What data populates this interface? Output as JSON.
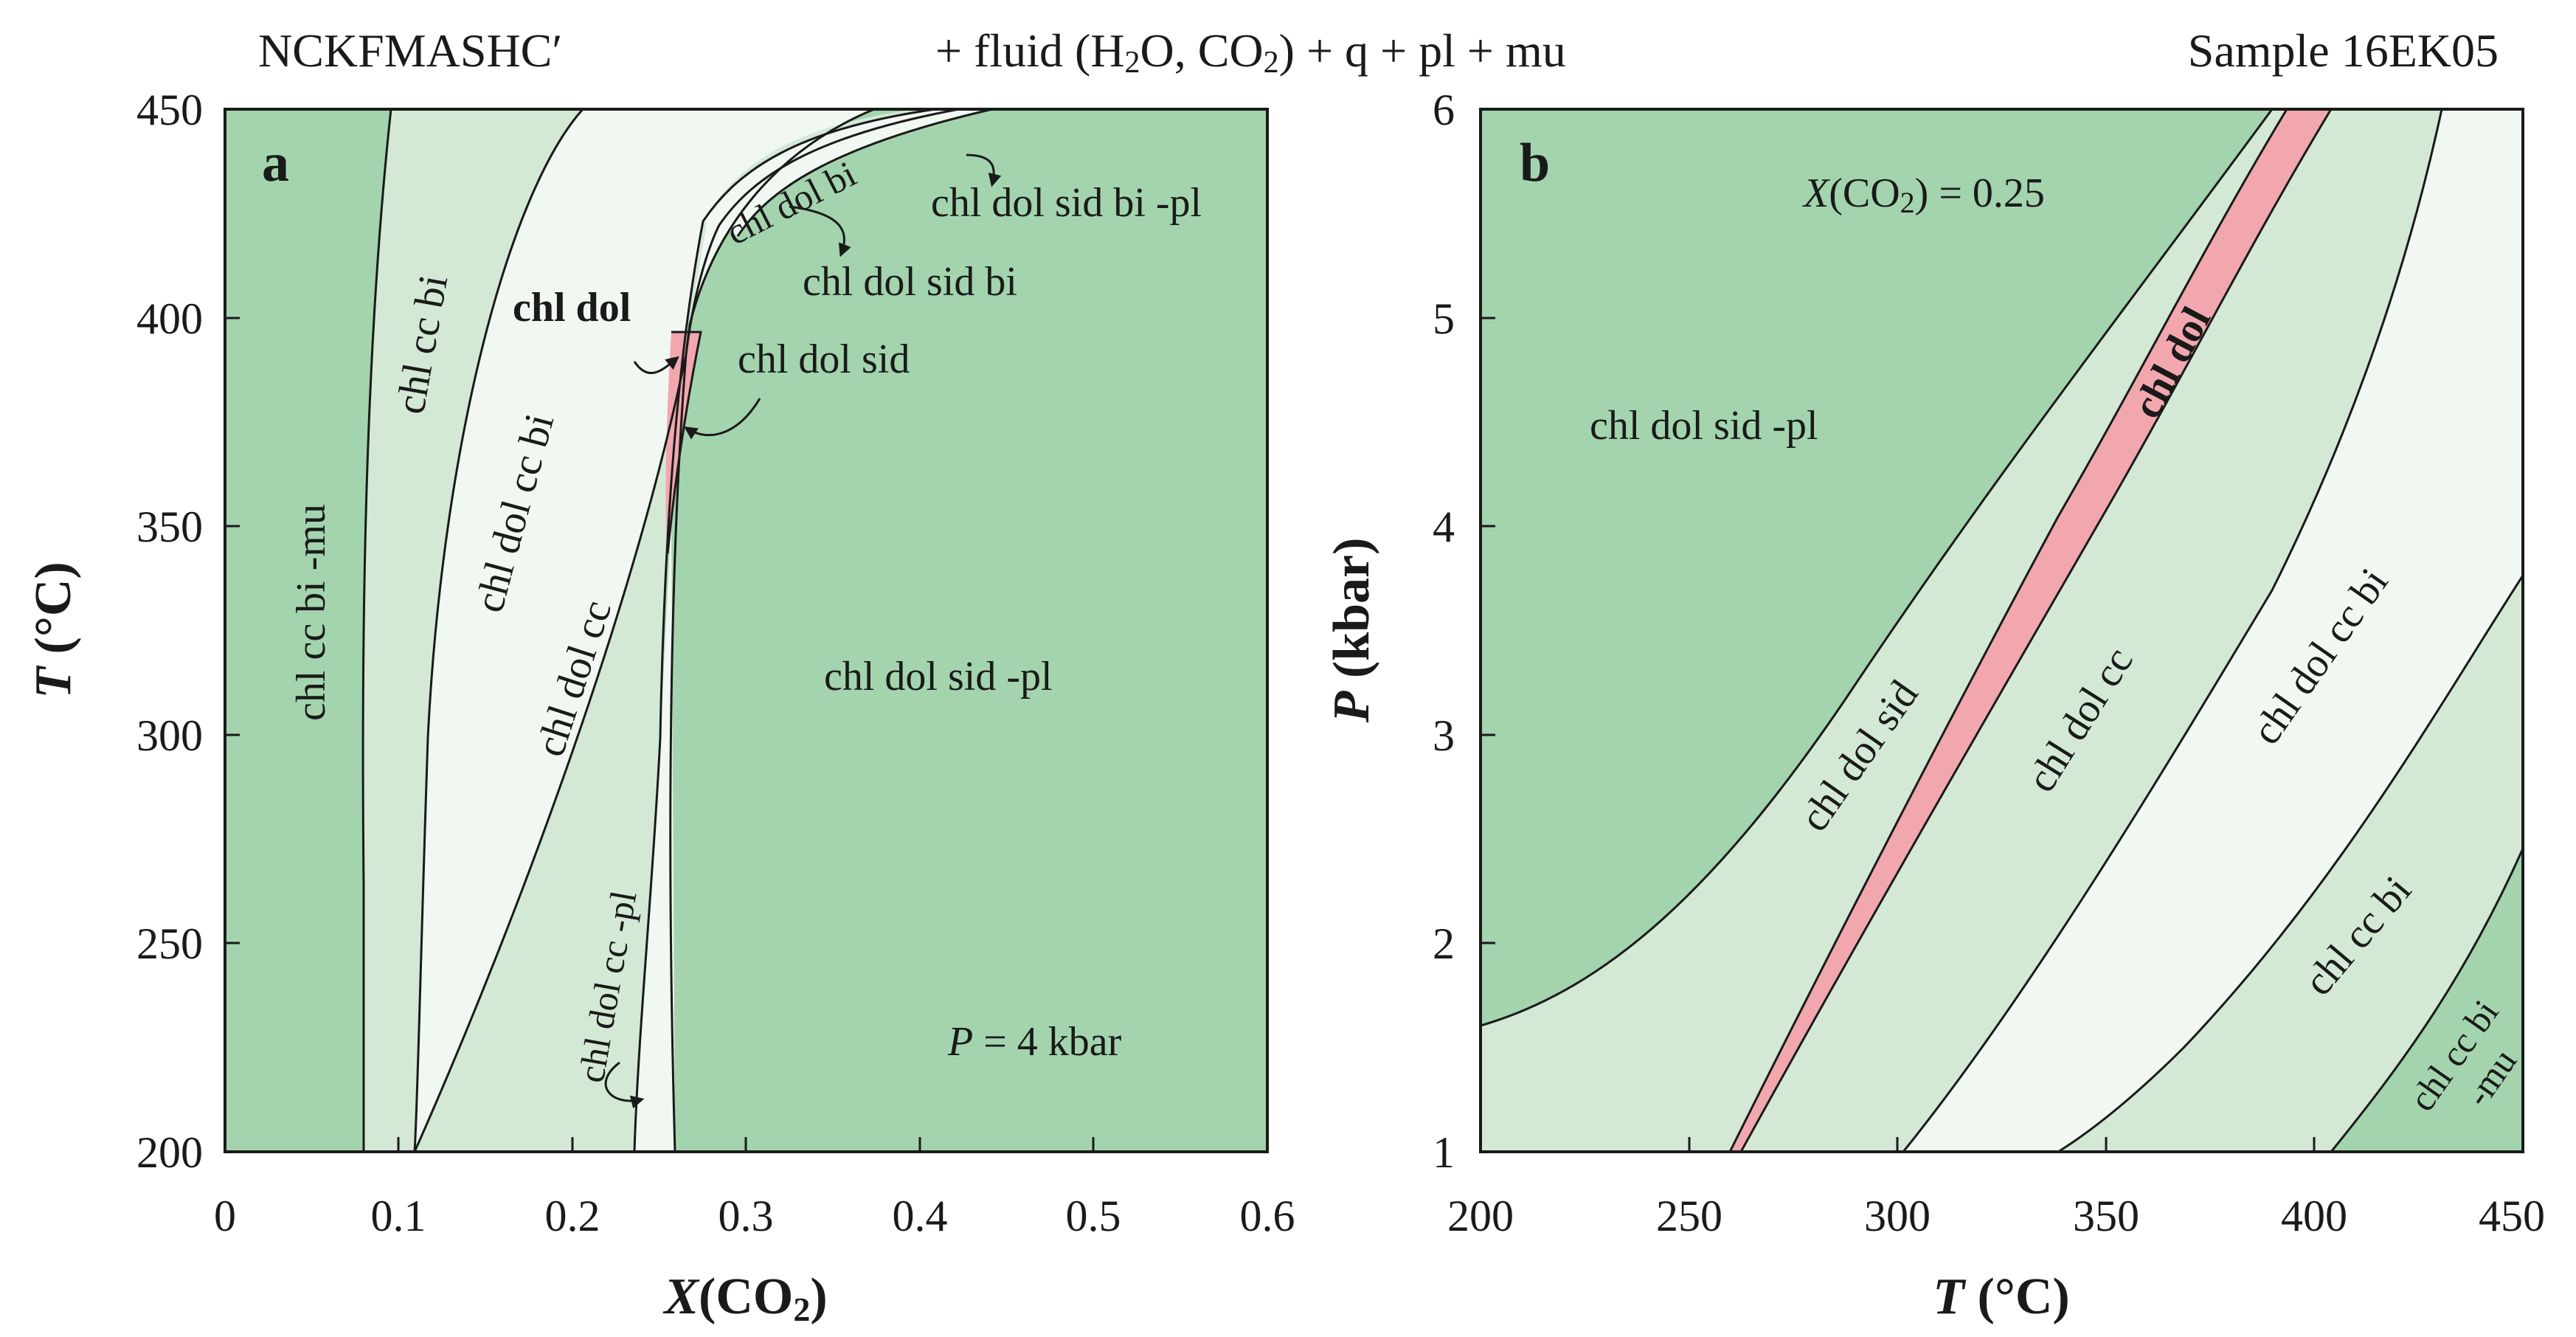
{
  "header": {
    "left": "NCKFMASHC′",
    "center": "+ fluid (H2O, CO2) + q + pl + mu",
    "right": "Sample 16EK05"
  },
  "colors": {
    "dark_green": "#a3d4ae",
    "mid_green": "#d3e9d6",
    "light_green": "#f1f8f1",
    "pink": "#f2a7ae",
    "line": "#1a1a1a"
  },
  "panel_a": {
    "letter": "a",
    "condition": "P = 4 kbar",
    "condition_italic": "P",
    "condition_rest": " = 4 kbar",
    "x_title": "X(CO2)",
    "y_title": "T (°C)",
    "x_ticks": [
      "0",
      "0.1",
      "0.2",
      "0.3",
      "0.4",
      "0.5",
      "0.6"
    ],
    "y_ticks": [
      "200",
      "250",
      "300",
      "350",
      "400",
      "450"
    ],
    "fields": {
      "chl_cc_bi_mu": "chl cc bi -mu",
      "chl_cc_bi": "chl cc bi",
      "chl_dol_cc_bi": "chl dol cc bi",
      "chl_dol_cc": "chl dol cc",
      "chl_dol": "chl dol",
      "chl_dol_bi": "chl dol bi",
      "chl_dol_sid_bi_pl": "chl dol sid bi -pl",
      "chl_dol_sid_bi": "chl dol sid bi",
      "chl_dol_sid": "chl dol sid",
      "chl_dol_sid_pl": "chl dol sid -pl",
      "chl_dol_cc_pl": "chl dol cc -pl"
    }
  },
  "panel_b": {
    "letter": "b",
    "condition": "X(CO2) = 0.25",
    "x_title": "T (°C)",
    "y_title": "P (kbar)",
    "x_ticks": [
      "200",
      "250",
      "300",
      "350",
      "400",
      "450"
    ],
    "y_ticks": [
      "1",
      "2",
      "3",
      "4",
      "5",
      "6"
    ],
    "fields": {
      "chl_dol_sid_pl": "chl dol sid -pl",
      "chl_dol_sid": "chl dol sid",
      "chl_dol": "chl dol",
      "chl_dol_cc": "chl dol cc",
      "chl_dol_cc_bi": "chl dol cc bi",
      "chl_cc_bi": "chl cc bi",
      "chl_cc_bi_mu_1": "chl cc bi",
      "chl_cc_bi_mu_2": "-mu"
    }
  }
}
